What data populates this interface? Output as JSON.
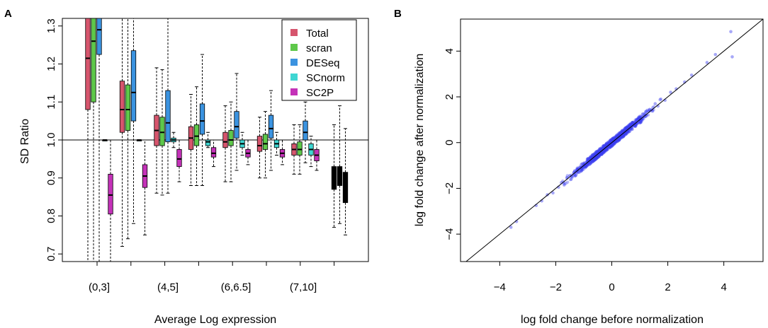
{
  "panels": [
    {
      "label": "A"
    },
    {
      "label": "B"
    }
  ],
  "chart_data": [
    {
      "type": "boxplot",
      "panel": "A",
      "xlabel": "Average Log expression",
      "ylabel": "SD Ratio",
      "ylim": [
        0.68,
        1.32
      ],
      "yticks": [
        0.7,
        0.8,
        0.9,
        1.0,
        1.1,
        1.2,
        1.3
      ],
      "ytick_labels": [
        "0.7",
        "0.8",
        "0.9",
        "1.0",
        "1.1",
        "1.2",
        "1.3"
      ],
      "reference_line": 1.0,
      "category_labels": [
        "(0,3]",
        "(4,5]",
        "(6,6.5]",
        "(7,10]"
      ],
      "legend": {
        "position": "top-right",
        "entries": [
          "Total",
          "scran",
          "DESeq",
          "SCnorm",
          "SC2P"
        ]
      },
      "colors": {
        "Total": "#d6556d",
        "scran": "#5ec84a",
        "DESeq": "#3b93e0",
        "SCnorm": "#3fd6d2",
        "SC2P": "#c432b8",
        "unlabeled": "#000000"
      },
      "groups": [
        {
          "position": 1,
          "boxes": [
            {
              "series": "Total",
              "whisker_low": 0.68,
              "q1": 1.08,
              "median": 1.215,
              "q3": 1.33,
              "whisker_high": 1.33
            },
            {
              "series": "scran",
              "whisker_low": 0.68,
              "q1": 1.1,
              "median": 1.26,
              "q3": 1.33,
              "whisker_high": 1.33
            },
            {
              "series": "DESeq",
              "whisker_low": 0.68,
              "q1": 1.225,
              "median": 1.29,
              "q3": 1.33,
              "whisker_high": 1.33
            },
            {
              "series": "SCnorm",
              "whisker_low": 1.0,
              "q1": 1.0,
              "median": 1.0,
              "q3": 1.0,
              "whisker_high": 1.0
            },
            {
              "series": "SC2P",
              "whisker_low": 0.68,
              "q1": 0.805,
              "median": 0.855,
              "q3": 0.91,
              "whisker_high": 1.0
            }
          ]
        },
        {
          "position": 2,
          "boxes": [
            {
              "series": "Total",
              "whisker_low": 0.72,
              "q1": 1.02,
              "median": 1.08,
              "q3": 1.155,
              "whisker_high": 1.32
            },
            {
              "series": "scran",
              "whisker_low": 0.74,
              "q1": 1.025,
              "median": 1.08,
              "q3": 1.145,
              "whisker_high": 1.32
            },
            {
              "series": "DESeq",
              "whisker_low": 0.78,
              "q1": 1.05,
              "median": 1.125,
              "q3": 1.235,
              "whisker_high": 1.32
            },
            {
              "series": "SCnorm",
              "whisker_low": 1.0,
              "q1": 1.0,
              "median": 1.0,
              "q3": 1.0,
              "whisker_high": 1.0
            },
            {
              "series": "SC2P",
              "whisker_low": 0.75,
              "q1": 0.875,
              "median": 0.905,
              "q3": 0.935,
              "whisker_high": 1.0
            }
          ]
        },
        {
          "position": 3,
          "boxes": [
            {
              "series": "Total",
              "whisker_low": 0.86,
              "q1": 0.985,
              "median": 1.025,
              "q3": 1.065,
              "whisker_high": 1.19
            },
            {
              "series": "scran",
              "whisker_low": 0.855,
              "q1": 0.985,
              "median": 1.02,
              "q3": 1.06,
              "whisker_high": 1.185
            },
            {
              "series": "DESeq",
              "whisker_low": 0.86,
              "q1": 0.995,
              "median": 1.045,
              "q3": 1.13,
              "whisker_high": 1.32
            },
            {
              "series": "SCnorm",
              "whisker_low": 0.98,
              "q1": 0.995,
              "median": 1.0,
              "q3": 1.005,
              "whisker_high": 1.02
            },
            {
              "series": "SC2P",
              "whisker_low": 0.89,
              "q1": 0.93,
              "median": 0.95,
              "q3": 0.975,
              "whisker_high": 1.0
            }
          ]
        },
        {
          "position": 4,
          "boxes": [
            {
              "series": "Total",
              "whisker_low": 0.88,
              "q1": 0.975,
              "median": 1.005,
              "q3": 1.035,
              "whisker_high": 1.12
            },
            {
              "series": "scran",
              "whisker_low": 0.88,
              "q1": 0.985,
              "median": 1.01,
              "q3": 1.04,
              "whisker_high": 1.14
            },
            {
              "series": "DESeq",
              "whisker_low": 0.88,
              "q1": 1.015,
              "median": 1.05,
              "q3": 1.095,
              "whisker_high": 1.225
            },
            {
              "series": "SCnorm",
              "whisker_low": 0.98,
              "q1": 0.985,
              "median": 0.995,
              "q3": 1.0,
              "whisker_high": 1.02
            },
            {
              "series": "SC2P",
              "whisker_low": 0.93,
              "q1": 0.955,
              "median": 0.965,
              "q3": 0.98,
              "whisker_high": 1.0
            }
          ]
        },
        {
          "position": 5,
          "boxes": [
            {
              "series": "Total",
              "whisker_low": 0.89,
              "q1": 0.98,
              "median": 0.995,
              "q3": 1.02,
              "whisker_high": 1.09
            },
            {
              "series": "scran",
              "whisker_low": 0.89,
              "q1": 0.985,
              "median": 1.0,
              "q3": 1.025,
              "whisker_high": 1.1
            },
            {
              "series": "DESeq",
              "whisker_low": 0.92,
              "q1": 1.005,
              "median": 1.035,
              "q3": 1.075,
              "whisker_high": 1.175
            },
            {
              "series": "SCnorm",
              "whisker_low": 0.96,
              "q1": 0.98,
              "median": 0.99,
              "q3": 1.0,
              "whisker_high": 1.02
            },
            {
              "series": "SC2P",
              "whisker_low": 0.935,
              "q1": 0.955,
              "median": 0.965,
              "q3": 0.975,
              "whisker_high": 1.0
            }
          ]
        },
        {
          "position": 6,
          "boxes": [
            {
              "series": "Total",
              "whisker_low": 0.9,
              "q1": 0.97,
              "median": 0.985,
              "q3": 1.01,
              "whisker_high": 1.06
            },
            {
              "series": "scran",
              "whisker_low": 0.9,
              "q1": 0.975,
              "median": 0.99,
              "q3": 1.015,
              "whisker_high": 1.075
            },
            {
              "series": "DESeq",
              "whisker_low": 0.92,
              "q1": 1.005,
              "median": 1.03,
              "q3": 1.065,
              "whisker_high": 1.13
            },
            {
              "series": "SCnorm",
              "whisker_low": 0.96,
              "q1": 0.98,
              "median": 0.99,
              "q3": 1.0,
              "whisker_high": 1.02
            },
            {
              "series": "SC2P",
              "whisker_low": 0.935,
              "q1": 0.955,
              "median": 0.965,
              "q3": 0.975,
              "whisker_high": 1.0
            }
          ]
        },
        {
          "position": 7,
          "boxes": [
            {
              "series": "Total",
              "whisker_low": 0.91,
              "q1": 0.96,
              "median": 0.975,
              "q3": 0.99,
              "whisker_high": 1.04
            },
            {
              "series": "scran",
              "whisker_low": 0.91,
              "q1": 0.96,
              "median": 0.975,
              "q3": 0.995,
              "whisker_high": 1.04
            },
            {
              "series": "DESeq",
              "whisker_low": 0.94,
              "q1": 1.0,
              "median": 1.02,
              "q3": 1.05,
              "whisker_high": 1.1
            },
            {
              "series": "SCnorm",
              "whisker_low": 0.93,
              "q1": 0.96,
              "median": 0.975,
              "q3": 0.99,
              "whisker_high": 1.01
            },
            {
              "series": "SC2P",
              "whisker_low": 0.92,
              "q1": 0.945,
              "median": 0.96,
              "q3": 0.975,
              "whisker_high": 1.0
            }
          ]
        },
        {
          "position": 8,
          "boxes": [
            {
              "series": "unlabeled",
              "whisker_low": 0.77,
              "q1": 0.87,
              "median": 0.9,
              "q3": 0.93,
              "whisker_high": 1.04
            },
            {
              "series": "unlabeled",
              "whisker_low": 0.78,
              "q1": 0.88,
              "median": 0.91,
              "q3": 0.93,
              "whisker_high": 1.09
            },
            {
              "series": "unlabeled",
              "whisker_low": 0.75,
              "q1": 0.835,
              "median": 0.87,
              "q3": 0.915,
              "whisker_high": 1.03
            }
          ]
        }
      ]
    },
    {
      "type": "scatter",
      "panel": "B",
      "xlabel": "log fold change before normalization",
      "ylabel": "log fold change after normalization",
      "xlim": [
        -5.4,
        5.4
      ],
      "ylim": [
        -5.2,
        5.4
      ],
      "xticks": [
        -4,
        -2,
        0,
        2,
        4
      ],
      "xtick_labels": [
        "−4",
        "−2",
        "0",
        "2",
        "4"
      ],
      "yticks": [
        -4,
        -2,
        0,
        2,
        4
      ],
      "ytick_labels": [
        "−4",
        "−2",
        "0",
        "2",
        "4"
      ],
      "reference_line": {
        "slope": 1,
        "intercept": 0
      },
      "point_color": "#3b3ff0",
      "points": [
        [
          -3.6,
          -3.7
        ],
        [
          -3.4,
          -3.45
        ],
        [
          -2.7,
          -2.75
        ],
        [
          -2.5,
          -2.55
        ],
        [
          -2.3,
          -2.28
        ],
        [
          -2.1,
          -2.2
        ],
        [
          -1.9,
          -1.95
        ],
        [
          -1.8,
          -1.75
        ],
        [
          -1.7,
          -1.85
        ],
        [
          -1.6,
          -1.55
        ],
        [
          -1.5,
          -1.45
        ],
        [
          -1.45,
          -1.6
        ],
        [
          -1.35,
          -1.3
        ],
        [
          -1.3,
          -1.45
        ],
        [
          -1.2,
          -1.15
        ],
        [
          -1.1,
          -1.25
        ],
        [
          -1.0,
          -0.95
        ],
        [
          -0.95,
          -1.1
        ],
        [
          -0.85,
          -0.8
        ],
        [
          -0.8,
          -0.95
        ],
        [
          -0.7,
          -0.65
        ],
        [
          -0.6,
          -0.75
        ],
        [
          -0.5,
          -0.45
        ],
        [
          -0.45,
          -0.6
        ],
        [
          -0.35,
          -0.3
        ],
        [
          -0.3,
          -0.4
        ],
        [
          -0.2,
          -0.15
        ],
        [
          -0.1,
          -0.2
        ],
        [
          0.0,
          0.0
        ],
        [
          0.1,
          0.05
        ],
        [
          0.15,
          0.25
        ],
        [
          0.25,
          0.2
        ],
        [
          0.35,
          0.45
        ],
        [
          0.45,
          0.4
        ],
        [
          0.55,
          0.65
        ],
        [
          0.65,
          0.6
        ],
        [
          0.75,
          0.85
        ],
        [
          0.85,
          0.8
        ],
        [
          0.95,
          1.05
        ],
        [
          1.05,
          1.0
        ],
        [
          1.15,
          1.25
        ],
        [
          1.25,
          1.2
        ],
        [
          1.35,
          1.45
        ],
        [
          1.45,
          1.4
        ],
        [
          1.55,
          1.7
        ],
        [
          1.65,
          1.6
        ],
        [
          1.75,
          1.9
        ],
        [
          1.9,
          1.85
        ],
        [
          2.1,
          2.2
        ],
        [
          2.3,
          2.35
        ],
        [
          2.6,
          2.65
        ],
        [
          2.85,
          2.95
        ],
        [
          3.4,
          3.5
        ],
        [
          3.7,
          3.85
        ],
        [
          4.25,
          4.85
        ],
        [
          4.3,
          3.75
        ]
      ]
    }
  ]
}
